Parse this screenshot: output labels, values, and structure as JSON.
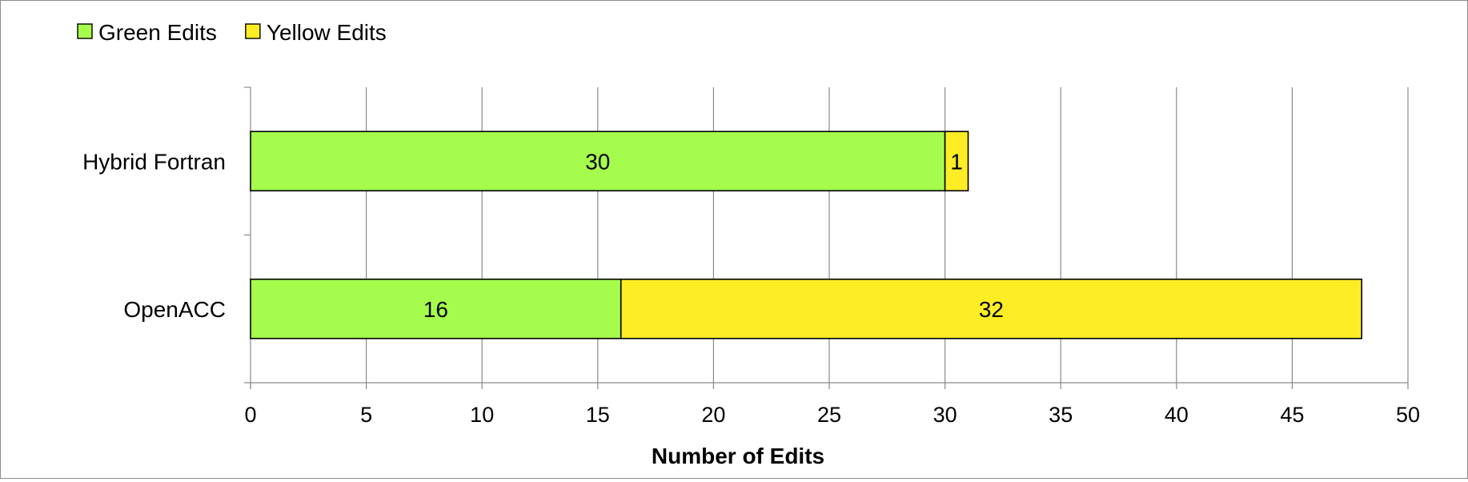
{
  "chart_data": {
    "type": "bar",
    "orientation": "horizontal",
    "stacked": true,
    "categories": [
      "Hybrid Fortran",
      "OpenACC"
    ],
    "series": [
      {
        "name": "Green Edits",
        "values": [
          30,
          16
        ],
        "color": "#a6fc4c"
      },
      {
        "name": "Yellow Edits",
        "values": [
          1,
          32
        ],
        "color": "#fded25"
      }
    ],
    "title": "",
    "xlabel": "Number of Edits",
    "ylabel": "",
    "xlim": [
      0,
      50
    ],
    "xticks": [
      0,
      5,
      10,
      15,
      20,
      25,
      30,
      35,
      40,
      45,
      50
    ],
    "grid": "vertical",
    "legend_position": "top-left"
  }
}
